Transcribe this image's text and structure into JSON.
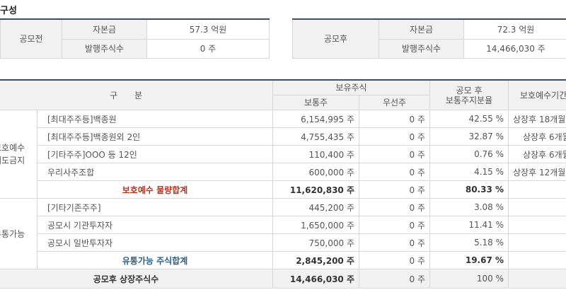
{
  "title": "구성",
  "before": {
    "label": "공모전",
    "capital_label": "자본금",
    "capital": "57.3 억원",
    "shares_label": "발행주식수",
    "shares": "0 주"
  },
  "after": {
    "label": "공모후",
    "capital_label": "자본금",
    "capital": "72.3 억원",
    "shares_label": "발행주식수",
    "shares": "14,466,030 주"
  },
  "main": {
    "headers": {
      "category": "구　　분",
      "holdings": "보유주식",
      "common": "보통주",
      "preferred": "우선주",
      "ratio": "공모 후\n보통주지분율",
      "lockup": "보호예수기간"
    },
    "groups": [
      {
        "label": "보호예수 매도금지",
        "rows": [
          {
            "name": "[최대주주등]백종원",
            "common": "6,154,995 주",
            "preferred": "0 주",
            "ratio": "42.55 %",
            "lockup": "상장후 18개월"
          },
          {
            "name": "[최대주주등]백종원외 2인",
            "common": "4,755,435 주",
            "preferred": "0 주",
            "ratio": "32.87 %",
            "lockup": "상장후 6개월"
          },
          {
            "name": "[기타주주]OOO 등 12인",
            "common": "110,400 주",
            "preferred": "0 주",
            "ratio": "0.76 %",
            "lockup": "상장후 6개월"
          },
          {
            "name": "우리사주조합",
            "common": "600,000 주",
            "preferred": "0 주",
            "ratio": "4.15 %",
            "lockup": "상장후 12개월"
          }
        ],
        "subtotal": {
          "name": "보호예수 물량합계",
          "common": "11,620,830 주",
          "preferred": "0 주",
          "ratio": "80.33 %"
        }
      },
      {
        "label": "유통가능",
        "rows": [
          {
            "name": "[기타기존주주]",
            "common": "445,200 주",
            "preferred": "0 주",
            "ratio": "3.08 %"
          },
          {
            "name": "공모시 기관투자자",
            "common": "1,650,000 주",
            "preferred": "0 주",
            "ratio": "11.41 %"
          },
          {
            "name": "공모시 일반투자자",
            "common": "750,000 주",
            "preferred": "0 주",
            "ratio": "5.18 %"
          }
        ],
        "subtotal": {
          "name": "유통가능 주식합계",
          "common": "2,845,200 주",
          "preferred": "0 주",
          "ratio": "19.67 %"
        }
      }
    ],
    "total": {
      "name": "공모후 상장주식수",
      "common": "14,466,030 주",
      "preferred": "0 주",
      "ratio": "100 %"
    }
  }
}
